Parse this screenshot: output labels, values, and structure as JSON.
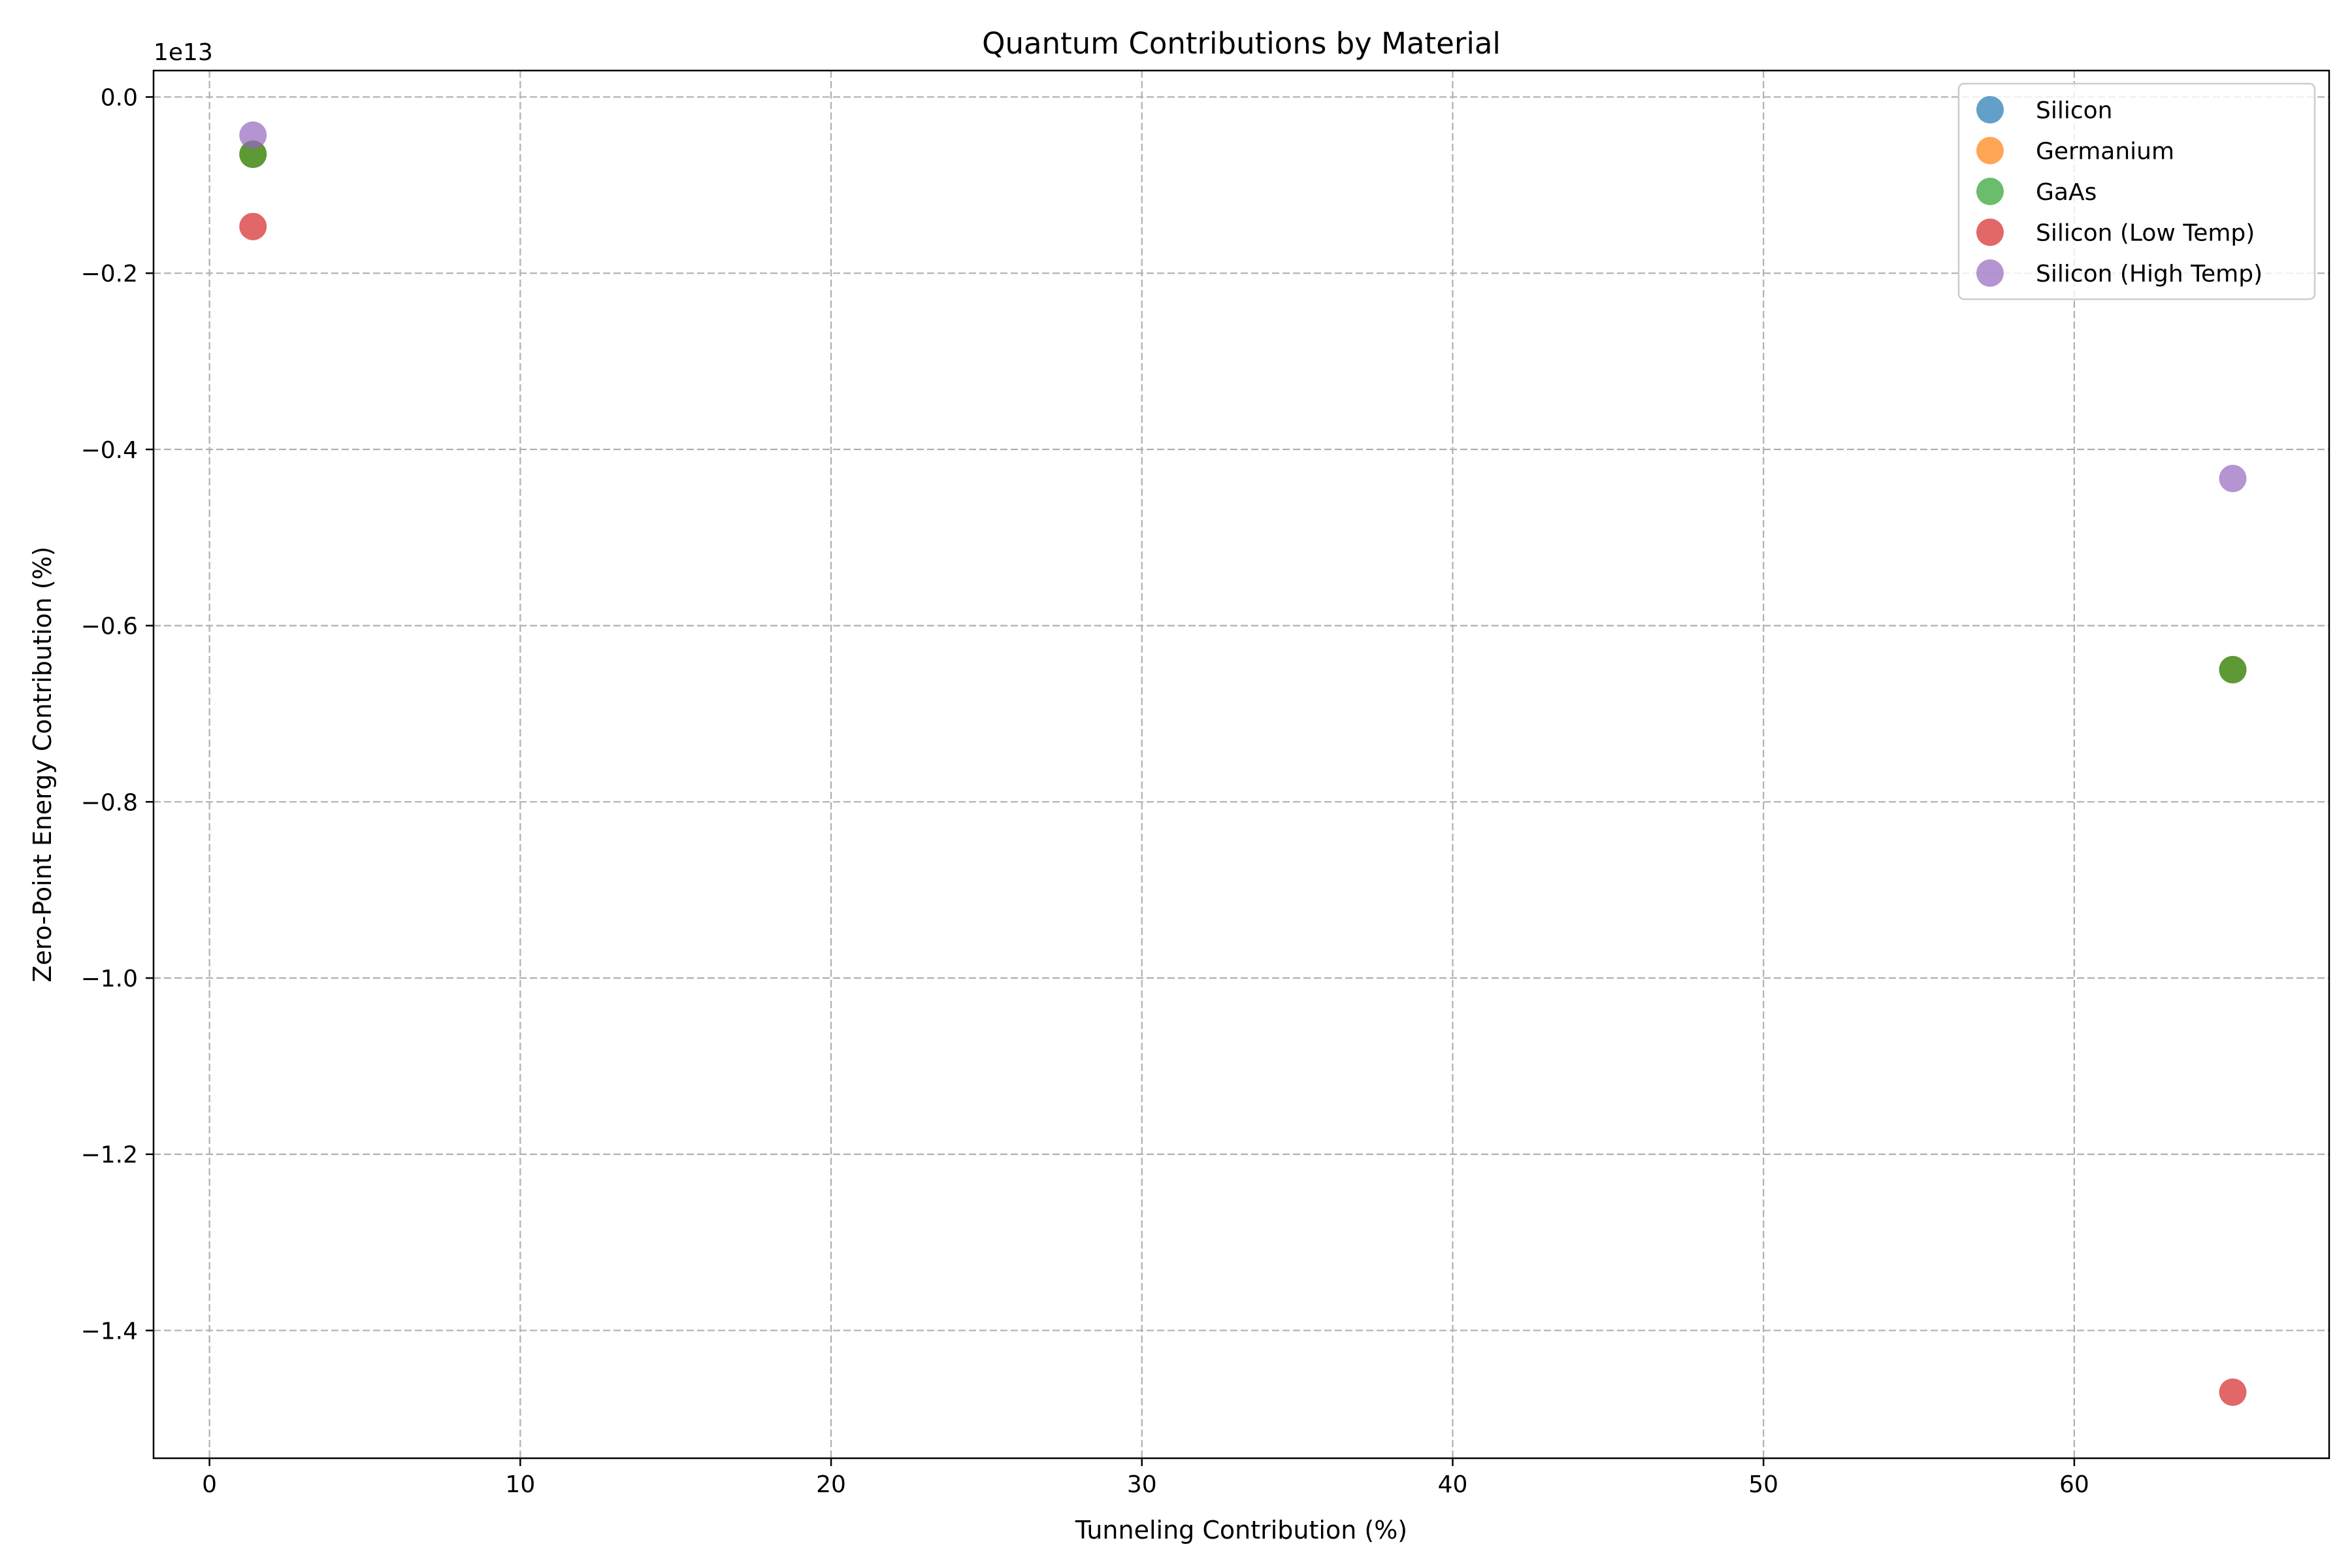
{
  "chart_data": {
    "type": "scatter",
    "title": "Quantum Contributions by Material",
    "xlabel": "Tunneling Contribution (%)",
    "ylabel": "Zero-Point Energy Contribution (%)",
    "y_offset_label": "1e13",
    "y_scale_factor": 10000000000000.0,
    "xlim": [
      -1.8,
      68.2
    ],
    "ylim": [
      -15450000000000.0,
      300000000000.0
    ],
    "xticks": [
      0,
      10,
      20,
      30,
      40,
      50,
      60
    ],
    "xtick_labels": [
      "0",
      "10",
      "20",
      "30",
      "40",
      "50",
      "60"
    ],
    "yticks": [
      0.0,
      -0.2,
      -0.4,
      -0.6,
      -0.8,
      -1.0,
      -1.2,
      -1.4
    ],
    "ytick_labels": [
      "0.0",
      "−0.2",
      "−0.4",
      "−0.6",
      "−0.8",
      "−1.0",
      "−1.2",
      "−1.4"
    ],
    "grid": true,
    "legend_position": "upper-right",
    "series": [
      {
        "name": "Silicon",
        "color": "#1f77b4",
        "x": [
          1.4,
          65.1
        ],
        "y": [
          -650000000000.0,
          -6500000000000.0
        ]
      },
      {
        "name": "Germanium",
        "color": "#ff7f0e",
        "x": [
          1.4,
          65.1
        ],
        "y": [
          -650000000000.0,
          -6500000000000.0
        ]
      },
      {
        "name": "GaAs",
        "color": "#2ca02c",
        "x": [
          1.4,
          65.1
        ],
        "y": [
          -650000000000.0,
          -6500000000000.0
        ]
      },
      {
        "name": "Silicon (Low Temp)",
        "color": "#d62728",
        "x": [
          1.4,
          65.1
        ],
        "y": [
          -1470000000000.0,
          -14700000000000.0
        ]
      },
      {
        "name": "Silicon (High Temp)",
        "color": "#9467bd",
        "x": [
          1.4,
          65.1
        ],
        "y": [
          -433000000000.0,
          -4330000000000.0
        ]
      }
    ]
  }
}
